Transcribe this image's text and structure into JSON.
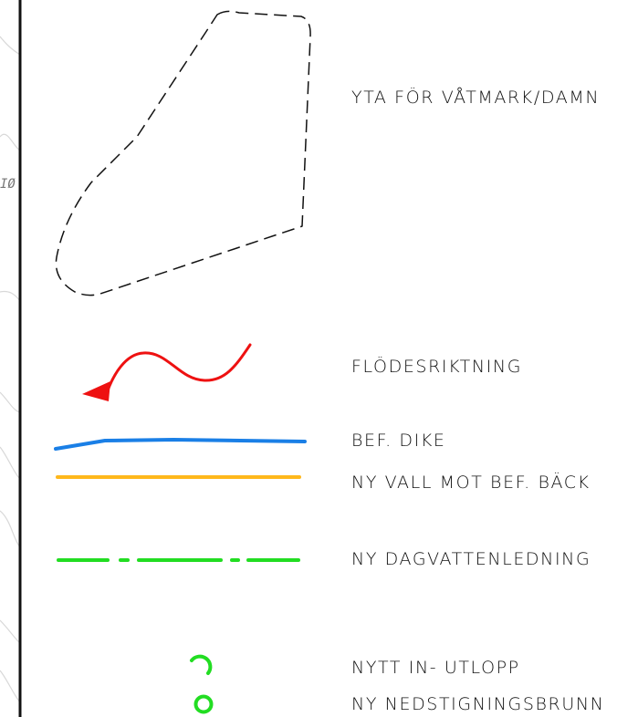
{
  "legend": {
    "items": [
      {
        "id": "wetland",
        "symbol": "dashed-outline",
        "label": "YTA FÖR VÅTMARK/DAMN",
        "color": "#111111"
      },
      {
        "id": "flow",
        "symbol": "wavy-arrow",
        "label": "FLÖDESRIKTNING",
        "color": "#ee1111"
      },
      {
        "id": "ditch",
        "symbol": "solid-line",
        "label": "BEF. DIKE",
        "color": "#1a7fe6"
      },
      {
        "id": "embankment",
        "symbol": "solid-line",
        "label": "NY VALL MOT BEF. BÄCK",
        "color": "#ffb81c"
      },
      {
        "id": "stormwater",
        "symbol": "dash-dot-line",
        "label": "NY DAGVATTENLEDNING",
        "color": "#22dd22"
      },
      {
        "id": "outlet",
        "symbol": "open-hook",
        "label": "NYTT IN- UTLOPP",
        "color": "#22dd22"
      },
      {
        "id": "manhole",
        "symbol": "circle",
        "label": "NY NEDSTIGNINGSBRUNN",
        "color": "#22dd22"
      }
    ]
  },
  "map_fragment": {
    "text": "IØ",
    "border_color": "#111111",
    "contour_color": "#d8d8d8"
  }
}
